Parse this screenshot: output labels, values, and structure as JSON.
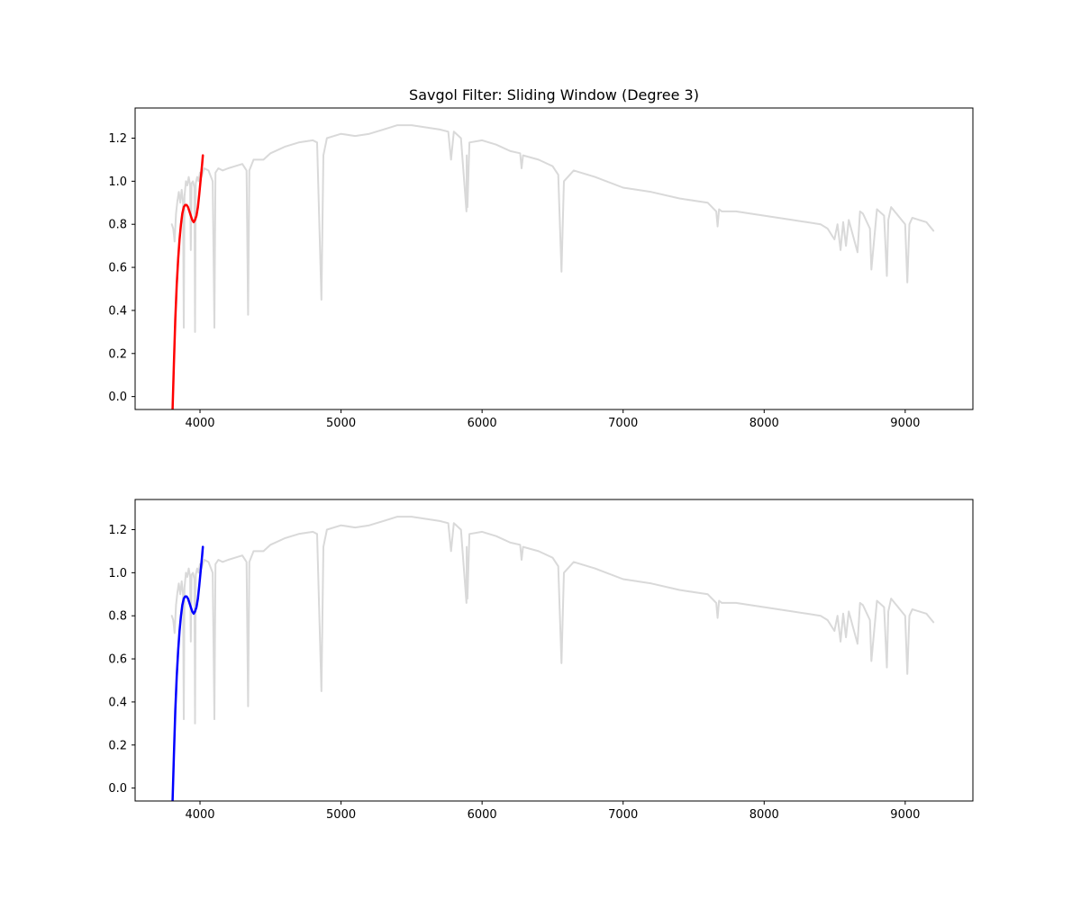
{
  "chart_data": [
    {
      "type": "line",
      "title": "Savgol Filter: Sliding Window (Degree 3)",
      "xlabel": "",
      "ylabel": "",
      "xlim": [
        3540,
        9480
      ],
      "ylim": [
        -0.06,
        1.34
      ],
      "xticks": [
        4000,
        5000,
        6000,
        7000,
        8000,
        9000
      ],
      "yticks": [
        0.0,
        0.2,
        0.4,
        0.6,
        0.8,
        1.0,
        1.2
      ],
      "grid": false,
      "series": [
        {
          "role": "spectrum",
          "color": "#d9d9d9",
          "x": [
            3800,
            3810,
            3820,
            3830,
            3840,
            3850,
            3860,
            3870,
            3880,
            3885,
            3890,
            3900,
            3910,
            3920,
            3930,
            3935,
            3940,
            3950,
            3960,
            3965,
            3970,
            3980,
            3990,
            4000,
            4010,
            4030,
            4060,
            4090,
            4102,
            4110,
            4130,
            4160,
            4200,
            4250,
            4300,
            4330,
            4341,
            4350,
            4380,
            4450,
            4500,
            4600,
            4700,
            4800,
            4830,
            4861,
            4875,
            4900,
            4950,
            5000,
            5100,
            5200,
            5300,
            5400,
            5500,
            5600,
            5700,
            5760,
            5780,
            5800,
            5850,
            5889,
            5891,
            5896,
            5910,
            6000,
            6100,
            6200,
            6270,
            6280,
            6290,
            6400,
            6500,
            6540,
            6563,
            6580,
            6650,
            6800,
            7000,
            7200,
            7400,
            7600,
            7660,
            7670,
            7680,
            7700,
            7800,
            7900,
            8000,
            8100,
            8200,
            8300,
            8400,
            8450,
            8498,
            8520,
            8542,
            8560,
            8580,
            8600,
            8662,
            8680,
            8700,
            8750,
            8760,
            8800,
            8850,
            8870,
            8880,
            8900,
            8950,
            9000,
            9015,
            9030,
            9050,
            9100,
            9150,
            9200
          ],
          "y": [
            0.8,
            0.78,
            0.72,
            0.85,
            0.91,
            0.95,
            0.9,
            0.96,
            0.9,
            0.32,
            0.93,
            1.0,
            0.98,
            1.02,
            0.98,
            0.68,
            0.99,
            1.0,
            0.97,
            0.3,
            0.99,
            1.02,
            1.0,
            1.04,
            1.02,
            1.06,
            1.05,
            1.0,
            0.32,
            1.04,
            1.06,
            1.05,
            1.06,
            1.07,
            1.08,
            1.05,
            0.38,
            1.05,
            1.1,
            1.1,
            1.13,
            1.16,
            1.18,
            1.19,
            1.18,
            0.45,
            1.12,
            1.2,
            1.21,
            1.22,
            1.21,
            1.22,
            1.24,
            1.26,
            1.26,
            1.25,
            1.24,
            1.23,
            1.1,
            1.23,
            1.2,
            0.86,
            1.12,
            0.88,
            1.18,
            1.19,
            1.17,
            1.14,
            1.13,
            1.06,
            1.12,
            1.1,
            1.07,
            1.03,
            0.58,
            1.0,
            1.05,
            1.02,
            0.97,
            0.95,
            0.92,
            0.9,
            0.86,
            0.79,
            0.87,
            0.86,
            0.86,
            0.85,
            0.84,
            0.83,
            0.82,
            0.81,
            0.8,
            0.78,
            0.73,
            0.8,
            0.68,
            0.81,
            0.7,
            0.82,
            0.67,
            0.86,
            0.85,
            0.78,
            0.59,
            0.87,
            0.84,
            0.56,
            0.82,
            0.88,
            0.84,
            0.8,
            0.53,
            0.8,
            0.83,
            0.82,
            0.81,
            0.77
          ]
        },
        {
          "role": "fit",
          "color": "#ff0000",
          "x": [
            3805,
            3815,
            3825,
            3835,
            3845,
            3855,
            3865,
            3875,
            3885,
            3895,
            3905,
            3915,
            3925,
            3935,
            3945,
            3955,
            3965,
            3975,
            3985,
            3995,
            4005,
            4015,
            4020
          ],
          "y": [
            -0.07,
            0.16,
            0.36,
            0.52,
            0.64,
            0.73,
            0.8,
            0.85,
            0.88,
            0.89,
            0.89,
            0.88,
            0.86,
            0.84,
            0.82,
            0.81,
            0.82,
            0.84,
            0.88,
            0.94,
            1.01,
            1.08,
            1.12
          ]
        }
      ]
    },
    {
      "type": "line",
      "title": "",
      "xlabel": "",
      "ylabel": "",
      "xlim": [
        3540,
        9480
      ],
      "ylim": [
        -0.06,
        1.34
      ],
      "xticks": [
        4000,
        5000,
        6000,
        7000,
        8000,
        9000
      ],
      "yticks": [
        0.0,
        0.2,
        0.4,
        0.6,
        0.8,
        1.0,
        1.2
      ],
      "grid": false,
      "series": [
        {
          "role": "spectrum",
          "color": "#d9d9d9",
          "x": [
            3800,
            3810,
            3820,
            3830,
            3840,
            3850,
            3860,
            3870,
            3880,
            3885,
            3890,
            3900,
            3910,
            3920,
            3930,
            3935,
            3940,
            3950,
            3960,
            3965,
            3970,
            3980,
            3990,
            4000,
            4010,
            4030,
            4060,
            4090,
            4102,
            4110,
            4130,
            4160,
            4200,
            4250,
            4300,
            4330,
            4341,
            4350,
            4380,
            4450,
            4500,
            4600,
            4700,
            4800,
            4830,
            4861,
            4875,
            4900,
            4950,
            5000,
            5100,
            5200,
            5300,
            5400,
            5500,
            5600,
            5700,
            5760,
            5780,
            5800,
            5850,
            5889,
            5891,
            5896,
            5910,
            6000,
            6100,
            6200,
            6270,
            6280,
            6290,
            6400,
            6500,
            6540,
            6563,
            6580,
            6650,
            6800,
            7000,
            7200,
            7400,
            7600,
            7660,
            7670,
            7680,
            7700,
            7800,
            7900,
            8000,
            8100,
            8200,
            8300,
            8400,
            8450,
            8498,
            8520,
            8542,
            8560,
            8580,
            8600,
            8662,
            8680,
            8700,
            8750,
            8760,
            8800,
            8850,
            8870,
            8880,
            8900,
            8950,
            9000,
            9015,
            9030,
            9050,
            9100,
            9150,
            9200
          ],
          "y": [
            0.8,
            0.78,
            0.72,
            0.85,
            0.91,
            0.95,
            0.9,
            0.96,
            0.9,
            0.32,
            0.93,
            1.0,
            0.98,
            1.02,
            0.98,
            0.68,
            0.99,
            1.0,
            0.97,
            0.3,
            0.99,
            1.02,
            1.0,
            1.04,
            1.02,
            1.06,
            1.05,
            1.0,
            0.32,
            1.04,
            1.06,
            1.05,
            1.06,
            1.07,
            1.08,
            1.05,
            0.38,
            1.05,
            1.1,
            1.1,
            1.13,
            1.16,
            1.18,
            1.19,
            1.18,
            0.45,
            1.12,
            1.2,
            1.21,
            1.22,
            1.21,
            1.22,
            1.24,
            1.26,
            1.26,
            1.25,
            1.24,
            1.23,
            1.1,
            1.23,
            1.2,
            0.86,
            1.12,
            0.88,
            1.18,
            1.19,
            1.17,
            1.14,
            1.13,
            1.06,
            1.12,
            1.1,
            1.07,
            1.03,
            0.58,
            1.0,
            1.05,
            1.02,
            0.97,
            0.95,
            0.92,
            0.9,
            0.86,
            0.79,
            0.87,
            0.86,
            0.86,
            0.85,
            0.84,
            0.83,
            0.82,
            0.81,
            0.8,
            0.78,
            0.73,
            0.8,
            0.68,
            0.81,
            0.7,
            0.82,
            0.67,
            0.86,
            0.85,
            0.78,
            0.59,
            0.87,
            0.84,
            0.56,
            0.82,
            0.88,
            0.84,
            0.8,
            0.53,
            0.8,
            0.83,
            0.82,
            0.81,
            0.77
          ]
        },
        {
          "role": "fit",
          "color": "#0000ff",
          "x": [
            3805,
            3815,
            3825,
            3835,
            3845,
            3855,
            3865,
            3875,
            3885,
            3895,
            3905,
            3915,
            3925,
            3935,
            3945,
            3955,
            3965,
            3975,
            3985,
            3995,
            4005,
            4015,
            4020
          ],
          "y": [
            -0.07,
            0.16,
            0.36,
            0.52,
            0.64,
            0.73,
            0.8,
            0.85,
            0.88,
            0.89,
            0.89,
            0.88,
            0.86,
            0.84,
            0.82,
            0.81,
            0.82,
            0.84,
            0.88,
            0.94,
            1.01,
            1.08,
            1.12
          ]
        }
      ]
    }
  ]
}
